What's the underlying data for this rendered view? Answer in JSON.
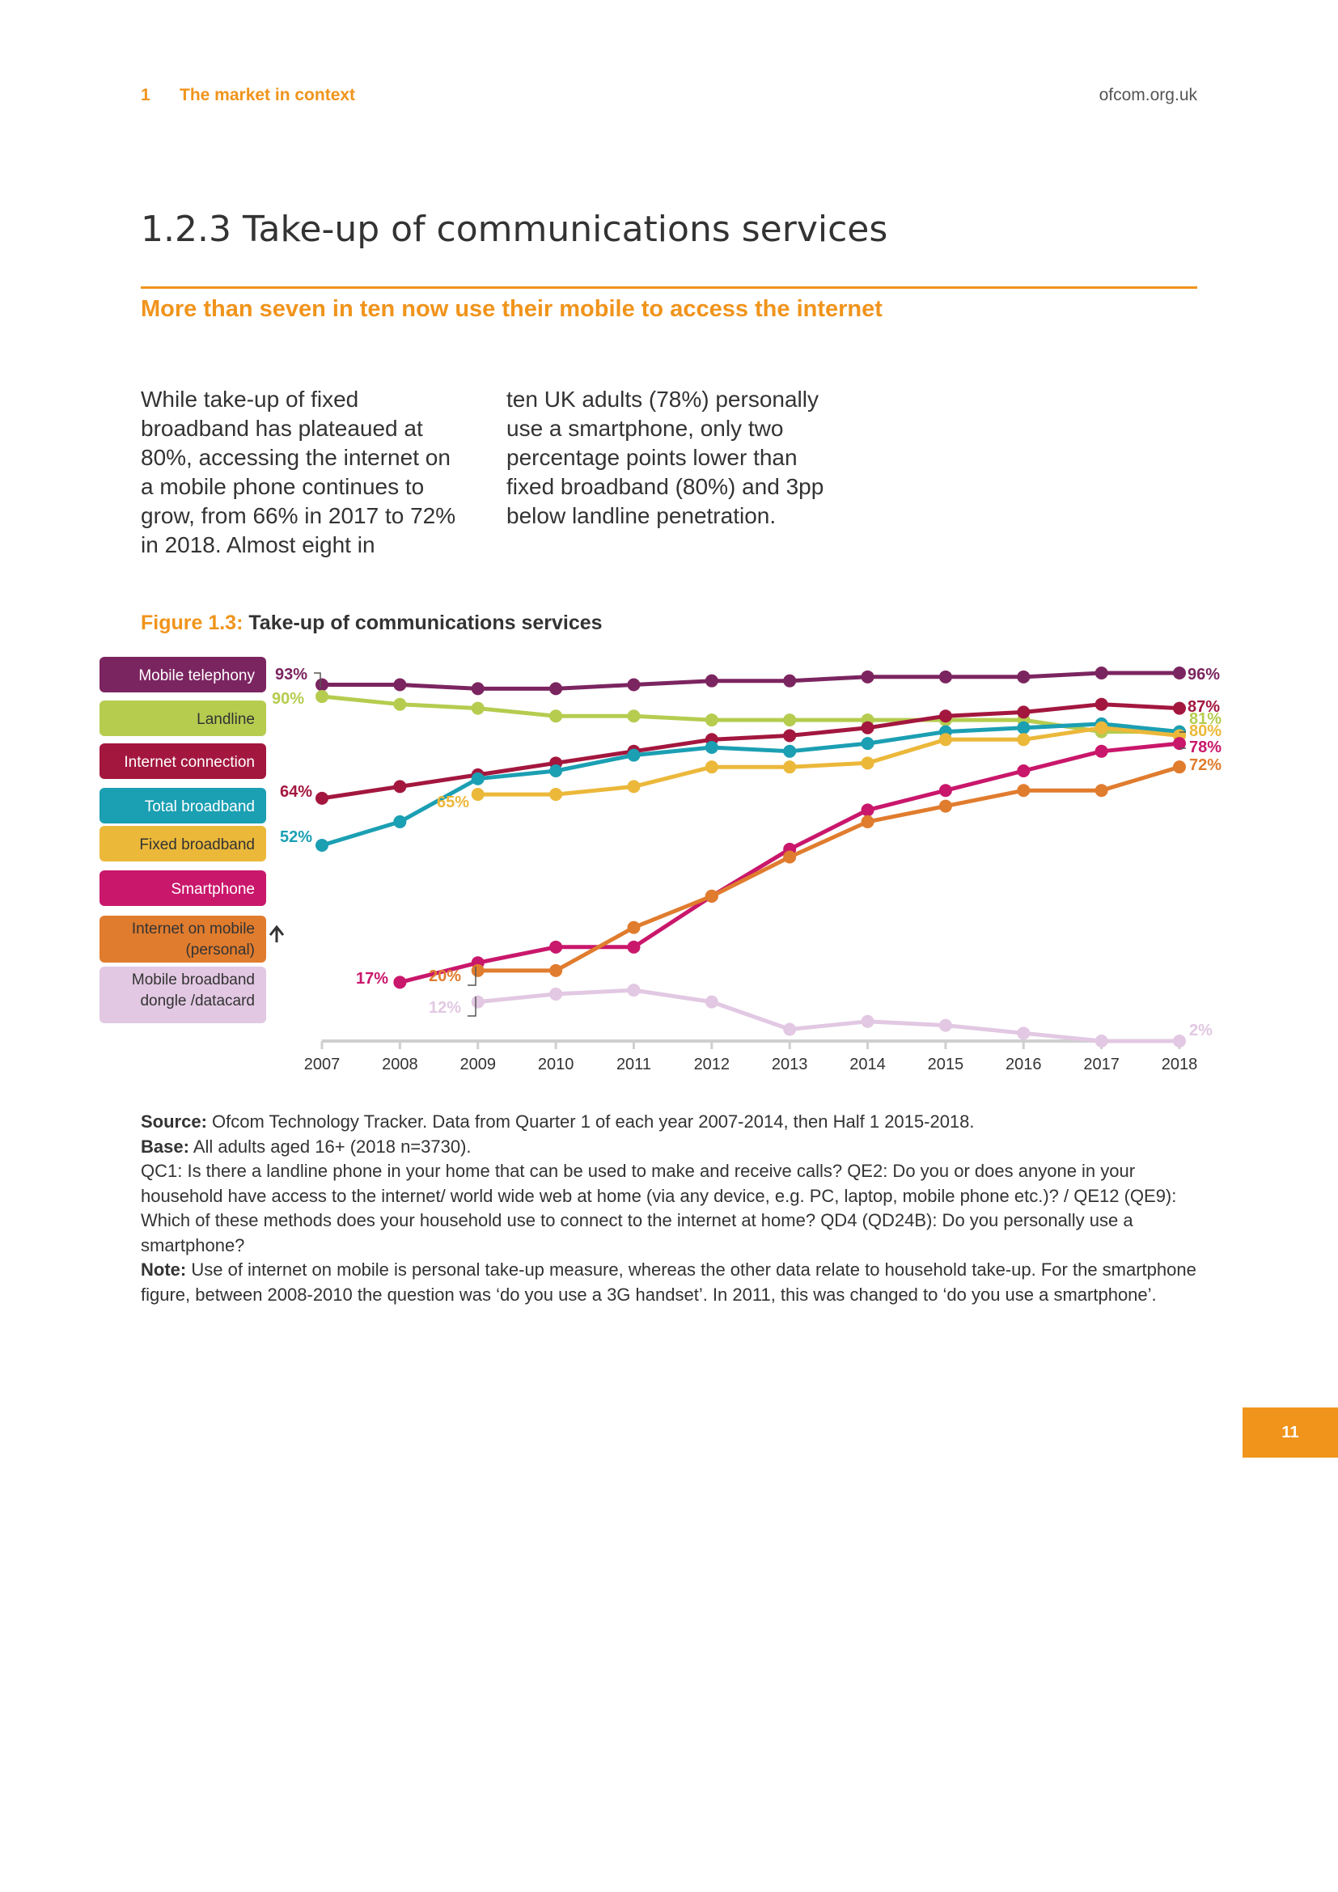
{
  "header": {
    "section_num": "1",
    "section_title": "The market in context",
    "site": "ofcom.org.uk"
  },
  "title": "1.2.3 Take-up of communications services",
  "subhead": "More than seven in ten now use their mobile to access the internet",
  "body_col1": "While take-up of fixed broadband has plateaued at 80%, accessing the internet on a mobile phone continues to grow, from 66% in 2017 to 72% in 2018. Almost eight in",
  "body_col2": "ten UK adults (78%) personally use a smartphone, only two percentage points lower than fixed broadband (80%) and 3pp below landline penetration.",
  "figure": {
    "label": "Figure 1.3:",
    "title": "Take-up of communications services"
  },
  "chart_data": {
    "type": "line",
    "x": [
      "2007",
      "2008",
      "2009",
      "2010",
      "2011",
      "2012",
      "2013",
      "2014",
      "2015",
      "2016",
      "2017",
      "2018"
    ],
    "ylim": [
      0,
      100
    ],
    "grid": false,
    "legend": "left",
    "series": [
      {
        "name": "Mobile telephony",
        "color": "#7b2560",
        "values": [
          93,
          93,
          92,
          92,
          93,
          94,
          94,
          95,
          95,
          95,
          96,
          96
        ],
        "start_label": "93%",
        "end_label": "96%"
      },
      {
        "name": "Landline",
        "color": "#b5cc4f",
        "values": [
          90,
          88,
          87,
          85,
          85,
          84,
          84,
          84,
          84,
          84,
          81,
          81
        ],
        "start_label": "90%",
        "end_label": "81%"
      },
      {
        "name": "Internet connection",
        "color": "#a3173e",
        "values": [
          64,
          67,
          70,
          73,
          76,
          79,
          80,
          82,
          85,
          86,
          88,
          87
        ],
        "start_label": "64%",
        "end_label": "87%"
      },
      {
        "name": "Total broadband",
        "color": "#1b9fb3",
        "values": [
          52,
          58,
          69,
          71,
          75,
          77,
          76,
          78,
          81,
          82,
          83,
          81
        ],
        "start_label": "52%",
        "end_label": ""
      },
      {
        "name": "Fixed broadband",
        "color": "#ebb83a",
        "values": [
          null,
          null,
          65,
          65,
          67,
          72,
          72,
          73,
          79,
          79,
          82,
          80
        ],
        "start_label": "65%",
        "end_label": "80%"
      },
      {
        "name": "Smartphone",
        "color": "#c9176b",
        "values": [
          null,
          17,
          22,
          26,
          26,
          39,
          51,
          61,
          66,
          71,
          76,
          78
        ],
        "start_label": "17%",
        "end_label": "78%"
      },
      {
        "name": "Internet on mobile (personal)",
        "color": "#e07c2e",
        "values": [
          null,
          null,
          20,
          20,
          31,
          39,
          49,
          58,
          62,
          66,
          66,
          72
        ],
        "start_label": "20%",
        "end_label": "72%"
      },
      {
        "name": "Mobile broadband dongle /datacard",
        "color": "#e2c8e3",
        "values": [
          null,
          null,
          12,
          14,
          15,
          12,
          5,
          7,
          6,
          4,
          2,
          2
        ],
        "start_label": "12%",
        "end_label": "2%"
      }
    ]
  },
  "legend_labels": [
    "Mobile telephony",
    "Landline",
    "Internet connection",
    "Total broadband",
    "Fixed broadband",
    "Smartphone",
    "Internet on mobile (personal)",
    "Mobile broadband dongle /datacard"
  ],
  "source": {
    "source_label": "Source:",
    "source_text": "Ofcom Technology Tracker. Data from Quarter 1 of each year 2007-2014, then Half 1 2015-2018.",
    "base_label": "Base:",
    "base_text": "All adults aged 16+ (2018 n=3730).",
    "questions": "QC1: Is there a landline phone in your home that can be used to make and receive calls? QE2: Do you or does anyone in your household have access to the internet/ world wide web at home (via any device, e.g. PC, laptop, mobile phone etc.)? / QE12 (QE9): Which of these methods does your household use to connect to the internet at home? QD4 (QD24B): Do you personally use a smartphone?",
    "note_label": "Note:",
    "note_text": "Use of internet on mobile is personal take-up measure, whereas the other data relate to household take-up. For the smartphone figure, between 2008-2010 the question was ‘do you use a 3G handset’. In 2011, this was changed to ‘do you use a smartphone’."
  },
  "page_number": "11"
}
